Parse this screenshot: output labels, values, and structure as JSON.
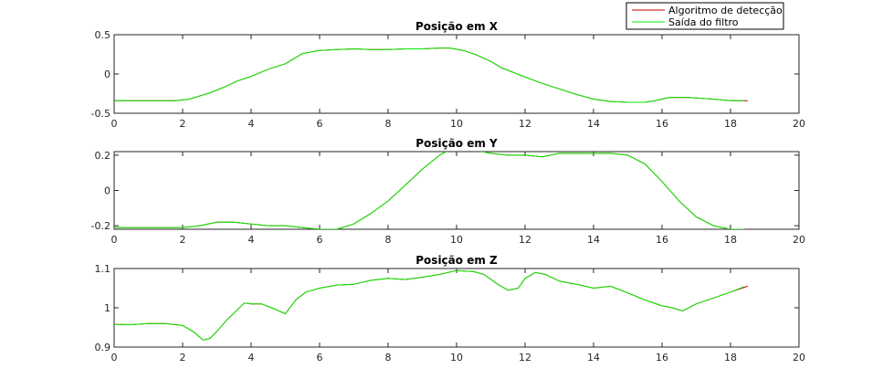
{
  "chart_data": [
    {
      "type": "line",
      "title": "Posição em X",
      "xlim": [
        0,
        20
      ],
      "ylim": [
        -0.5,
        0.5
      ],
      "xticks": [
        0,
        2,
        4,
        6,
        8,
        10,
        12,
        14,
        16,
        18,
        20
      ],
      "yticks": [
        -0.5,
        0,
        0.5
      ],
      "ytick_labels": [
        "-0.5",
        "0",
        "0.5"
      ],
      "grid": false,
      "series": [
        {
          "name": "Algoritmo de detecção",
          "color": "#cc0000",
          "x": [
            0,
            1,
            1.8,
            2.2,
            2.8,
            3.2,
            3.6,
            4,
            4.5,
            5,
            5.5,
            6,
            6.5,
            7,
            7.5,
            8,
            8.5,
            9,
            9.5,
            9.8,
            10.2,
            10.6,
            11,
            11.3,
            11.6,
            12,
            12.5,
            13,
            13.5,
            14,
            14.5,
            15,
            15.5,
            15.8,
            16.2,
            16.8,
            17.5,
            18,
            18.5
          ],
          "y": [
            -0.34,
            -0.34,
            -0.34,
            -0.32,
            -0.24,
            -0.17,
            -0.09,
            -0.03,
            0.06,
            0.13,
            0.26,
            0.3,
            0.31,
            0.32,
            0.31,
            0.31,
            0.32,
            0.32,
            0.33,
            0.33,
            0.3,
            0.24,
            0.16,
            0.08,
            0.03,
            -0.04,
            -0.12,
            -0.19,
            -0.26,
            -0.32,
            -0.35,
            -0.36,
            -0.36,
            -0.34,
            -0.3,
            -0.3,
            -0.32,
            -0.34,
            -0.34
          ]
        },
        {
          "name": "Saída do filtro",
          "color": "#00ee00",
          "x": [
            0,
            1,
            1.8,
            2.2,
            2.8,
            3.2,
            3.6,
            4,
            4.5,
            5,
            5.5,
            6,
            6.5,
            7,
            7.5,
            8,
            8.5,
            9,
            9.5,
            9.8,
            10.2,
            10.6,
            11,
            11.3,
            11.6,
            12,
            12.5,
            13,
            13.5,
            14,
            14.5,
            15,
            15.5,
            15.8,
            16.2,
            16.8,
            17.5,
            18,
            18.4
          ],
          "y": [
            -0.34,
            -0.34,
            -0.34,
            -0.32,
            -0.24,
            -0.17,
            -0.09,
            -0.03,
            0.06,
            0.13,
            0.26,
            0.3,
            0.31,
            0.32,
            0.31,
            0.31,
            0.32,
            0.32,
            0.33,
            0.33,
            0.3,
            0.24,
            0.16,
            0.08,
            0.03,
            -0.04,
            -0.12,
            -0.19,
            -0.26,
            -0.32,
            -0.35,
            -0.36,
            -0.36,
            -0.34,
            -0.3,
            -0.3,
            -0.32,
            -0.34,
            -0.34
          ]
        }
      ]
    },
    {
      "type": "line",
      "title": "Posição em Y",
      "xlim": [
        0,
        20
      ],
      "ylim": [
        -0.22,
        0.22
      ],
      "xticks": [
        0,
        2,
        4,
        6,
        8,
        10,
        12,
        14,
        16,
        18,
        20
      ],
      "yticks": [
        -0.2,
        0,
        0.2
      ],
      "ytick_labels": [
        "-0.2",
        "0",
        "0.2"
      ],
      "grid": false,
      "series": [
        {
          "name": "Algoritmo de detecção",
          "color": "#cc0000",
          "x": [
            0,
            1,
            2,
            2.5,
            3,
            3.5,
            4,
            4.5,
            5,
            5.5,
            6,
            6.5,
            7,
            7.5,
            8,
            8.5,
            9,
            9.5,
            9.8,
            10.5,
            11,
            11.5,
            12,
            12.5,
            13,
            13.5,
            14,
            14.5,
            15,
            15.5,
            16,
            16.5,
            17,
            17.5,
            18,
            18.5
          ],
          "y": [
            -0.21,
            -0.21,
            -0.21,
            -0.2,
            -0.18,
            -0.18,
            -0.19,
            -0.2,
            -0.2,
            -0.21,
            -0.22,
            -0.22,
            -0.19,
            -0.13,
            -0.06,
            0.03,
            0.12,
            0.2,
            0.23,
            0.23,
            0.21,
            0.2,
            0.2,
            0.19,
            0.21,
            0.21,
            0.21,
            0.21,
            0.2,
            0.15,
            0.05,
            -0.06,
            -0.15,
            -0.2,
            -0.22,
            -0.22
          ]
        },
        {
          "name": "Saída do filtro",
          "color": "#00ee00",
          "x": [
            0,
            1,
            2,
            2.5,
            3,
            3.5,
            4,
            4.5,
            5,
            5.5,
            6,
            6.5,
            7,
            7.5,
            8,
            8.5,
            9,
            9.5,
            9.8,
            10.5,
            11,
            11.5,
            12,
            12.5,
            13,
            13.5,
            14,
            14.5,
            15,
            15.5,
            16,
            16.5,
            17,
            17.5,
            18,
            18.4
          ],
          "y": [
            -0.21,
            -0.21,
            -0.21,
            -0.2,
            -0.18,
            -0.18,
            -0.19,
            -0.2,
            -0.2,
            -0.21,
            -0.22,
            -0.22,
            -0.19,
            -0.13,
            -0.06,
            0.03,
            0.12,
            0.2,
            0.23,
            0.23,
            0.21,
            0.2,
            0.2,
            0.19,
            0.21,
            0.21,
            0.21,
            0.21,
            0.2,
            0.15,
            0.05,
            -0.06,
            -0.15,
            -0.2,
            -0.22,
            -0.22
          ]
        }
      ]
    },
    {
      "type": "line",
      "title": "Posição em Z",
      "xlim": [
        0,
        20
      ],
      "ylim": [
        0.9,
        1.1
      ],
      "xticks": [
        0,
        2,
        4,
        6,
        8,
        10,
        12,
        14,
        16,
        18,
        20
      ],
      "yticks": [
        0.9,
        1,
        1.1
      ],
      "ytick_labels": [
        "0.9",
        "1",
        "1.1"
      ],
      "grid": false,
      "series": [
        {
          "name": "Algoritmo de detecção",
          "color": "#cc0000",
          "x": [
            0,
            0.5,
            1,
            1.5,
            2,
            2.3,
            2.6,
            2.8,
            3,
            3.3,
            3.6,
            3.8,
            4,
            4.3,
            4.6,
            5,
            5.3,
            5.6,
            6,
            6.5,
            7,
            7.5,
            8,
            8.5,
            9,
            9.5,
            10,
            10.5,
            10.8,
            11.2,
            11.5,
            11.8,
            12,
            12.3,
            12.6,
            13,
            13.5,
            14,
            14.5,
            15,
            15.5,
            16,
            16.3,
            16.6,
            17,
            17.5,
            18,
            18.5
          ],
          "y": [
            0.958,
            0.957,
            0.96,
            0.96,
            0.955,
            0.94,
            0.918,
            0.922,
            0.94,
            0.97,
            0.995,
            1.012,
            1.01,
            1.01,
            1.0,
            0.985,
            1.02,
            1.04,
            1.05,
            1.058,
            1.06,
            1.07,
            1.075,
            1.072,
            1.078,
            1.085,
            1.095,
            1.092,
            1.085,
            1.06,
            1.045,
            1.05,
            1.075,
            1.09,
            1.085,
            1.068,
            1.06,
            1.05,
            1.055,
            1.038,
            1.02,
            1.005,
            1.0,
            0.992,
            1.01,
            1.025,
            1.04,
            1.055
          ]
        },
        {
          "name": "Saída do filtro",
          "color": "#00ee00",
          "x": [
            0,
            0.5,
            1,
            1.5,
            2,
            2.3,
            2.6,
            2.8,
            3,
            3.3,
            3.6,
            3.8,
            4,
            4.3,
            4.6,
            5,
            5.3,
            5.6,
            6,
            6.5,
            7,
            7.5,
            8,
            8.5,
            9,
            9.5,
            10,
            10.5,
            10.8,
            11.2,
            11.5,
            11.8,
            12,
            12.3,
            12.6,
            13,
            13.5,
            14,
            14.5,
            15,
            15.5,
            16,
            16.3,
            16.6,
            17,
            17.5,
            18,
            18.4
          ],
          "y": [
            0.958,
            0.957,
            0.96,
            0.96,
            0.955,
            0.94,
            0.918,
            0.922,
            0.94,
            0.97,
            0.995,
            1.012,
            1.01,
            1.01,
            1.0,
            0.985,
            1.02,
            1.04,
            1.05,
            1.058,
            1.06,
            1.07,
            1.075,
            1.072,
            1.078,
            1.085,
            1.095,
            1.092,
            1.085,
            1.06,
            1.045,
            1.05,
            1.075,
            1.09,
            1.085,
            1.068,
            1.06,
            1.05,
            1.055,
            1.038,
            1.02,
            1.005,
            1.0,
            0.992,
            1.01,
            1.025,
            1.04,
            1.054
          ]
        }
      ]
    }
  ],
  "legend": {
    "placement": "top-right",
    "entries": [
      {
        "label": "Algoritmo de detecção",
        "color": "#cc0000"
      },
      {
        "label": "Saída do filtro",
        "color": "#00ee00"
      }
    ]
  }
}
